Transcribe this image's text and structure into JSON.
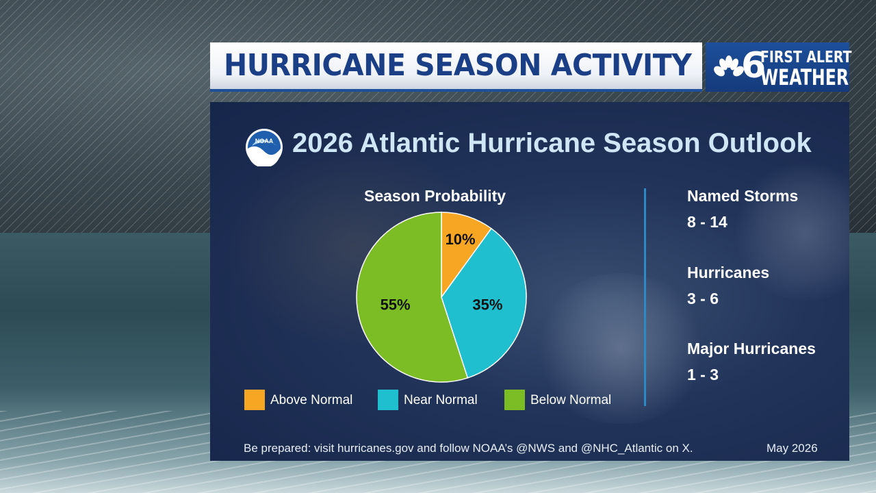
{
  "header": {
    "title": "HURRICANE SEASON ACTIVITY",
    "brand": {
      "channel": "6",
      "line1": "FIRST ALERT",
      "line2": "WEATHER"
    }
  },
  "panel": {
    "org_logo_text": "NOAA",
    "title": "2026 Atlantic Hurricane Season Outlook",
    "stats": [
      {
        "label": "Named Storms",
        "value": "8 - 14"
      },
      {
        "label": "Hurricanes",
        "value": "3 - 6"
      },
      {
        "label": "Major Hurricanes",
        "value": "1 - 3"
      }
    ],
    "footer": "Be prepared: visit hurricanes.gov and follow NOAA’s @NWS and @NHC_Atlantic on X.",
    "date": "May 2026"
  },
  "chart_data": {
    "type": "pie",
    "title": "Season Probability",
    "categories": [
      "Above Normal",
      "Near Normal",
      "Below Normal"
    ],
    "values": [
      10,
      35,
      55
    ],
    "value_labels": [
      "10%",
      "35%",
      "55%"
    ],
    "colors": [
      "#f6a623",
      "#1fbfcf",
      "#7cbd26"
    ],
    "legend_position": "bottom"
  }
}
